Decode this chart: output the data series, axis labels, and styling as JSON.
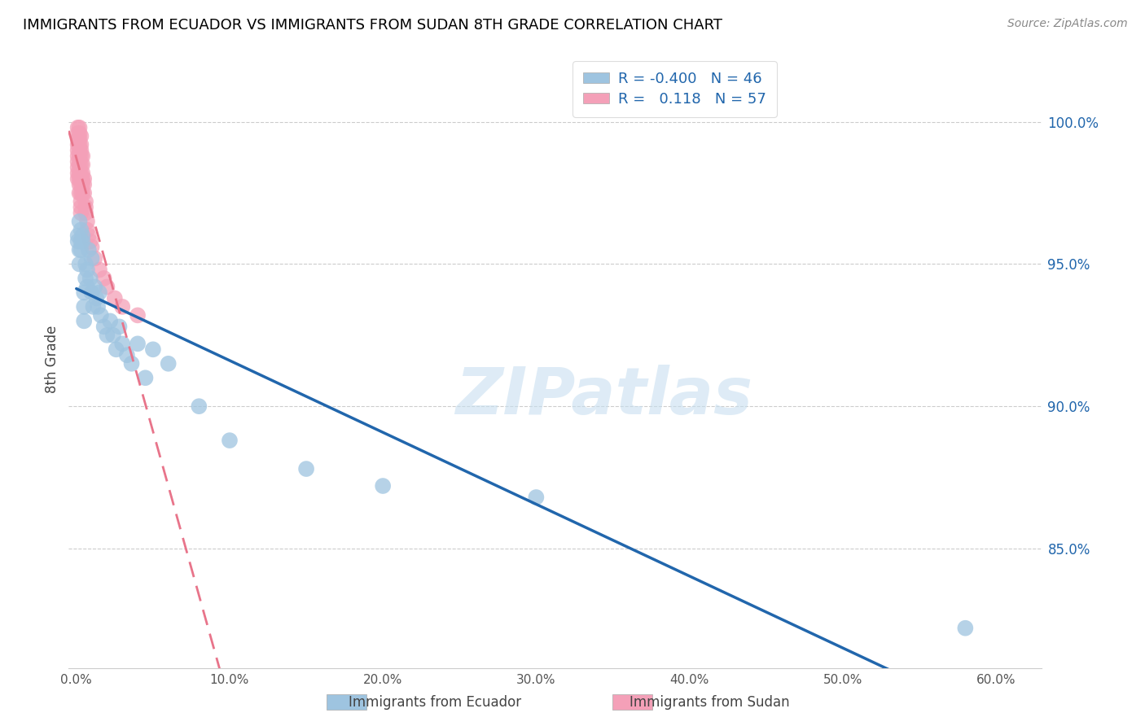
{
  "title": "IMMIGRANTS FROM ECUADOR VS IMMIGRANTS FROM SUDAN 8TH GRADE CORRELATION CHART",
  "source": "Source: ZipAtlas.com",
  "ylabel": "8th Grade",
  "x_ticks": [
    0.0,
    0.1,
    0.2,
    0.3,
    0.4,
    0.5,
    0.6
  ],
  "x_tick_labels": [
    "0.0%",
    "10.0%",
    "20.0%",
    "30.0%",
    "40.0%",
    "50.0%",
    "60.0%"
  ],
  "y_ticks_right": [
    0.85,
    0.9,
    0.95,
    1.0
  ],
  "y_tick_labels_right": [
    "85.0%",
    "90.0%",
    "95.0%",
    "100.0%"
  ],
  "xlim": [
    -0.005,
    0.63
  ],
  "ylim": [
    0.808,
    1.025
  ],
  "ecuador_R": -0.4,
  "ecuador_N": 46,
  "sudan_R": 0.118,
  "sudan_N": 57,
  "ecuador_color": "#9ec4e0",
  "sudan_color": "#f4a0b8",
  "ecuador_line_color": "#2166ac",
  "sudan_line_color": "#e8748a",
  "ecuador_x": [
    0.001,
    0.001,
    0.002,
    0.002,
    0.002,
    0.003,
    0.003,
    0.003,
    0.004,
    0.004,
    0.005,
    0.005,
    0.005,
    0.006,
    0.006,
    0.007,
    0.007,
    0.008,
    0.009,
    0.01,
    0.01,
    0.011,
    0.012,
    0.013,
    0.014,
    0.015,
    0.016,
    0.018,
    0.02,
    0.022,
    0.024,
    0.026,
    0.028,
    0.03,
    0.033,
    0.036,
    0.04,
    0.045,
    0.05,
    0.06,
    0.08,
    0.1,
    0.15,
    0.2,
    0.3,
    0.58
  ],
  "ecuador_y": [
    0.96,
    0.958,
    0.965,
    0.955,
    0.95,
    0.962,
    0.958,
    0.955,
    0.958,
    0.96,
    0.94,
    0.935,
    0.93,
    0.95,
    0.945,
    0.948,
    0.942,
    0.955,
    0.945,
    0.952,
    0.94,
    0.935,
    0.942,
    0.938,
    0.935,
    0.94,
    0.932,
    0.928,
    0.925,
    0.93,
    0.925,
    0.92,
    0.928,
    0.922,
    0.918,
    0.915,
    0.922,
    0.91,
    0.92,
    0.915,
    0.9,
    0.888,
    0.878,
    0.872,
    0.868,
    0.822
  ],
  "sudan_x": [
    0.001,
    0.001,
    0.001,
    0.001,
    0.001,
    0.001,
    0.001,
    0.001,
    0.001,
    0.001,
    0.002,
    0.002,
    0.002,
    0.002,
    0.002,
    0.002,
    0.002,
    0.002,
    0.002,
    0.002,
    0.002,
    0.003,
    0.003,
    0.003,
    0.003,
    0.003,
    0.003,
    0.003,
    0.003,
    0.003,
    0.003,
    0.003,
    0.003,
    0.004,
    0.004,
    0.004,
    0.004,
    0.004,
    0.004,
    0.005,
    0.005,
    0.005,
    0.006,
    0.006,
    0.006,
    0.007,
    0.007,
    0.008,
    0.009,
    0.01,
    0.012,
    0.015,
    0.018,
    0.02,
    0.025,
    0.03,
    0.04
  ],
  "sudan_y": [
    0.998,
    0.996,
    0.994,
    0.992,
    0.99,
    0.988,
    0.986,
    0.984,
    0.982,
    0.98,
    0.998,
    0.996,
    0.994,
    0.992,
    0.99,
    0.988,
    0.985,
    0.982,
    0.98,
    0.978,
    0.975,
    0.995,
    0.992,
    0.99,
    0.988,
    0.985,
    0.982,
    0.98,
    0.978,
    0.975,
    0.972,
    0.97,
    0.968,
    0.988,
    0.985,
    0.982,
    0.98,
    0.978,
    0.975,
    0.98,
    0.978,
    0.975,
    0.972,
    0.97,
    0.968,
    0.965,
    0.962,
    0.96,
    0.958,
    0.956,
    0.952,
    0.948,
    0.945,
    0.942,
    0.938,
    0.935,
    0.932
  ],
  "sudan_line_x_start": -0.005,
  "sudan_line_x_end": 0.44,
  "watermark_text": "ZIPatlas",
  "watermark_color": "#c8dff0",
  "background_color": "#ffffff",
  "grid_color": "#cccccc"
}
